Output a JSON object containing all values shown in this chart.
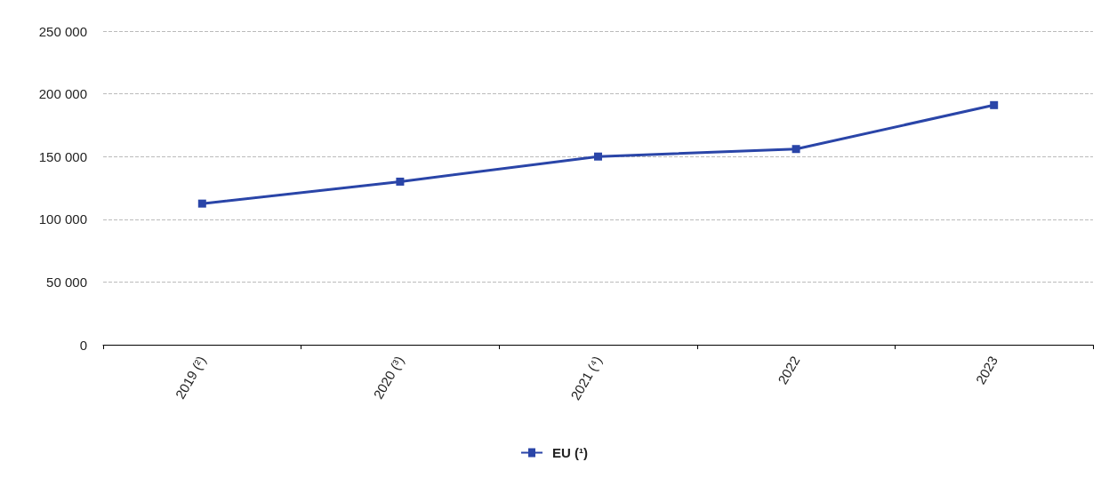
{
  "chart_data": {
    "type": "line",
    "categories": [
      "2019 (²)",
      "2020 (³)",
      "2021 (⁴)",
      "2022",
      "2023"
    ],
    "series": [
      {
        "name": "EU (¹)",
        "color": "#2a45a8",
        "values": [
          112500,
          130000,
          150000,
          156000,
          191000
        ]
      }
    ],
    "ylim": [
      0,
      250000
    ],
    "yticks": [
      {
        "value": 0,
        "label": "0"
      },
      {
        "value": 50000,
        "label": "50 000"
      },
      {
        "value": 100000,
        "label": "100 000"
      },
      {
        "value": 150000,
        "label": "150 000"
      },
      {
        "value": 200000,
        "label": "200 000"
      },
      {
        "value": 250000,
        "label": "250 000"
      }
    ],
    "grid": "y",
    "legend": "bottom",
    "marker": "square",
    "line_style": "solid"
  }
}
